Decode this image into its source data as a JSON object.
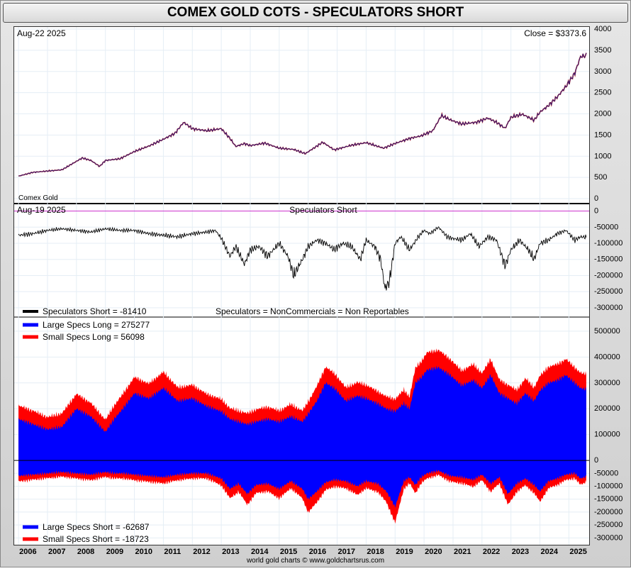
{
  "header": {
    "title": "COMEX GOLD COTS - SPECULATORS SHORT"
  },
  "footer": {
    "credit": "world gold charts © www.goldchartsrus.com"
  },
  "colors": {
    "price": "#000000",
    "spec_short": "#000000",
    "large_specs": "#0000ff",
    "small_specs": "#ff0000",
    "zero_line_top": "#cc33cc",
    "grid": "#e5eef5"
  },
  "chart_data": [
    {
      "type": "line",
      "panel": "price",
      "date_label": "Aug-22  2025",
      "close_label": "Close = $3373.6",
      "series_label": "Comex Gold",
      "ylim": [
        0,
        4000
      ],
      "yticks": [
        "4000",
        "3500",
        "3000",
        "2500",
        "2000",
        "1500",
        "1000",
        "500",
        "0"
      ],
      "x": [
        2006.0,
        2006.5,
        2007.0,
        2007.5,
        2008.0,
        2008.2,
        2008.5,
        2008.8,
        2009.0,
        2009.5,
        2010.0,
        2010.5,
        2011.0,
        2011.4,
        2011.7,
        2012.0,
        2012.5,
        2013.0,
        2013.3,
        2013.5,
        2013.8,
        2014.0,
        2014.5,
        2015.0,
        2015.5,
        2015.9,
        2016.5,
        2016.9,
        2017.5,
        2018.0,
        2018.6,
        2019.0,
        2019.5,
        2019.9,
        2020.3,
        2020.6,
        2020.9,
        2021.3,
        2021.8,
        2022.2,
        2022.5,
        2022.8,
        2023.0,
        2023.4,
        2023.8,
        2024.0,
        2024.3,
        2024.6,
        2024.9,
        2025.2,
        2025.4,
        2025.6
      ],
      "values": [
        530,
        620,
        650,
        680,
        880,
        960,
        900,
        760,
        900,
        940,
        1110,
        1240,
        1400,
        1540,
        1800,
        1650,
        1600,
        1650,
        1420,
        1230,
        1300,
        1250,
        1310,
        1190,
        1160,
        1060,
        1330,
        1150,
        1260,
        1320,
        1190,
        1300,
        1420,
        1480,
        1600,
        1960,
        1860,
        1760,
        1800,
        1900,
        1800,
        1660,
        1920,
        1990,
        1850,
        2040,
        2200,
        2400,
        2650,
        2950,
        3350,
        3373.6
      ]
    },
    {
      "type": "line",
      "panel": "speculators_short",
      "title": "Speculators Short",
      "date_label": "Aug-19  2025",
      "legend": [
        {
          "name": "Speculators Short  = -81410",
          "color": "#000000"
        }
      ],
      "note": "Speculators = NonCommercials = Non Reportables",
      "ylim": [
        -320000,
        10000
      ],
      "yticks": [
        "0",
        "-50000",
        "-100000",
        "-150000",
        "-200000",
        "-250000",
        "-300000"
      ],
      "x": [
        2006.0,
        2006.5,
        2007.0,
        2007.5,
        2008.0,
        2008.5,
        2009.0,
        2009.5,
        2010.0,
        2010.5,
        2011.0,
        2011.5,
        2012.0,
        2012.5,
        2012.8,
        2013.0,
        2013.3,
        2013.5,
        2013.8,
        2014.0,
        2014.3,
        2014.6,
        2015.0,
        2015.3,
        2015.5,
        2015.8,
        2016.0,
        2016.3,
        2016.6,
        2016.9,
        2017.2,
        2017.5,
        2017.8,
        2018.0,
        2018.3,
        2018.5,
        2018.65,
        2018.8,
        2019.0,
        2019.2,
        2019.5,
        2019.8,
        2020.0,
        2020.2,
        2020.5,
        2020.8,
        2021.0,
        2021.3,
        2021.6,
        2021.9,
        2022.2,
        2022.5,
        2022.8,
        2023.0,
        2023.3,
        2023.6,
        2023.8,
        2024.0,
        2024.3,
        2024.6,
        2024.9,
        2025.2,
        2025.4,
        2025.6
      ],
      "values": [
        -75000,
        -70000,
        -60000,
        -55000,
        -60000,
        -65000,
        -55000,
        -60000,
        -60000,
        -70000,
        -75000,
        -80000,
        -70000,
        -65000,
        -60000,
        -85000,
        -140000,
        -110000,
        -165000,
        -120000,
        -110000,
        -140000,
        -100000,
        -140000,
        -200000,
        -150000,
        -110000,
        -90000,
        -100000,
        -120000,
        -100000,
        -110000,
        -150000,
        -90000,
        -110000,
        -150000,
        -240000,
        -220000,
        -100000,
        -80000,
        -120000,
        -80000,
        -60000,
        -70000,
        -50000,
        -80000,
        -85000,
        -90000,
        -70000,
        -110000,
        -80000,
        -90000,
        -170000,
        -120000,
        -90000,
        -120000,
        -150000,
        -100000,
        -90000,
        -70000,
        -60000,
        -90000,
        -80000,
        -81410
      ]
    },
    {
      "type": "area",
      "panel": "specs_long_short",
      "legend_long": [
        {
          "name": "Large Specs Long  = 275277",
          "color": "#0000ff"
        },
        {
          "name": "Small Specs Long  = 56098",
          "color": "#ff0000"
        }
      ],
      "legend_short": [
        {
          "name": "Large Specs Short = -62687",
          "color": "#0000ff"
        },
        {
          "name": "Small Specs Short = -18723",
          "color": "#ff0000"
        }
      ],
      "ylim": [
        -310000,
        530000
      ],
      "yticks": [
        "500000",
        "400000",
        "300000",
        "200000",
        "100000",
        "0",
        "-50000",
        "-100000",
        "-150000",
        "-200000",
        "-250000",
        "-300000"
      ],
      "x": [
        2006.0,
        2006.5,
        2007.0,
        2007.5,
        2008.0,
        2008.5,
        2009.0,
        2009.3,
        2009.6,
        2010.0,
        2010.5,
        2011.0,
        2011.5,
        2012.0,
        2012.5,
        2013.0,
        2013.3,
        2013.6,
        2013.9,
        2014.2,
        2014.6,
        2015.0,
        2015.4,
        2015.8,
        2016.0,
        2016.3,
        2016.6,
        2016.9,
        2017.3,
        2017.7,
        2018.0,
        2018.4,
        2018.7,
        2019.0,
        2019.3,
        2019.5,
        2019.7,
        2019.9,
        2020.1,
        2020.5,
        2020.9,
        2021.3,
        2021.7,
        2022.0,
        2022.3,
        2022.6,
        2022.9,
        2023.2,
        2023.5,
        2023.8,
        2024.0,
        2024.3,
        2024.6,
        2024.9,
        2025.2,
        2025.4,
        2025.6
      ],
      "large_long": [
        160000,
        140000,
        120000,
        130000,
        200000,
        170000,
        110000,
        160000,
        200000,
        260000,
        240000,
        280000,
        230000,
        240000,
        210000,
        190000,
        160000,
        150000,
        140000,
        150000,
        160000,
        150000,
        170000,
        150000,
        180000,
        230000,
        300000,
        280000,
        230000,
        250000,
        240000,
        220000,
        200000,
        190000,
        220000,
        200000,
        300000,
        320000,
        350000,
        360000,
        330000,
        290000,
        310000,
        280000,
        330000,
        260000,
        240000,
        220000,
        260000,
        230000,
        270000,
        300000,
        310000,
        330000,
        300000,
        280000,
        275277
      ],
      "small_long": [
        50000,
        50000,
        45000,
        50000,
        55000,
        50000,
        45000,
        50000,
        55000,
        60000,
        55000,
        60000,
        50000,
        50000,
        45000,
        45000,
        40000,
        40000,
        40000,
        45000,
        45000,
        40000,
        45000,
        40000,
        45000,
        55000,
        60000,
        55000,
        50000,
        50000,
        50000,
        45000,
        45000,
        45000,
        50000,
        45000,
        55000,
        60000,
        65000,
        65000,
        60000,
        55000,
        60000,
        55000,
        60000,
        50000,
        50000,
        50000,
        55000,
        50000,
        55000,
        60000,
        60000,
        60000,
        58000,
        57000,
        56098
      ],
      "large_short": [
        -60000,
        -55000,
        -50000,
        -45000,
        -50000,
        -55000,
        -45000,
        -50000,
        -50000,
        -55000,
        -60000,
        -65000,
        -55000,
        -50000,
        -50000,
        -70000,
        -110000,
        -90000,
        -130000,
        -95000,
        -90000,
        -110000,
        -80000,
        -110000,
        -150000,
        -120000,
        -85000,
        -75000,
        -80000,
        -100000,
        -80000,
        -90000,
        -120000,
        -180000,
        -80000,
        -65000,
        -95000,
        -65000,
        -50000,
        -40000,
        -60000,
        -65000,
        -75000,
        -55000,
        -90000,
        -65000,
        -130000,
        -90000,
        -70000,
        -95000,
        -120000,
        -80000,
        -70000,
        -55000,
        -50000,
        -70000,
        -62687
      ],
      "small_short": [
        -20000,
        -18000,
        -17000,
        -16000,
        -18000,
        -20000,
        -17000,
        -18000,
        -18000,
        -20000,
        -21000,
        -22000,
        -20000,
        -18000,
        -18000,
        -25000,
        -35000,
        -30000,
        -40000,
        -30000,
        -28000,
        -35000,
        -26000,
        -35000,
        -50000,
        -40000,
        -28000,
        -25000,
        -26000,
        -32000,
        -26000,
        -30000,
        -40000,
        -60000,
        -28000,
        -22000,
        -30000,
        -22000,
        -18000,
        -15000,
        -20000,
        -22000,
        -25000,
        -20000,
        -30000,
        -22000,
        -40000,
        -30000,
        -24000,
        -30000,
        -38000,
        -26000,
        -23000,
        -19000,
        -18000,
        -22000,
        -18723
      ]
    }
  ],
  "xaxis": {
    "years": [
      "2006",
      "2007",
      "2008",
      "2009",
      "2010",
      "2011",
      "2012",
      "2013",
      "2014",
      "2015",
      "2016",
      "2017",
      "2018",
      "2019",
      "2020",
      "2021",
      "2022",
      "2023",
      "2024",
      "2025"
    ],
    "range": [
      2005.85,
      2025.7
    ]
  }
}
